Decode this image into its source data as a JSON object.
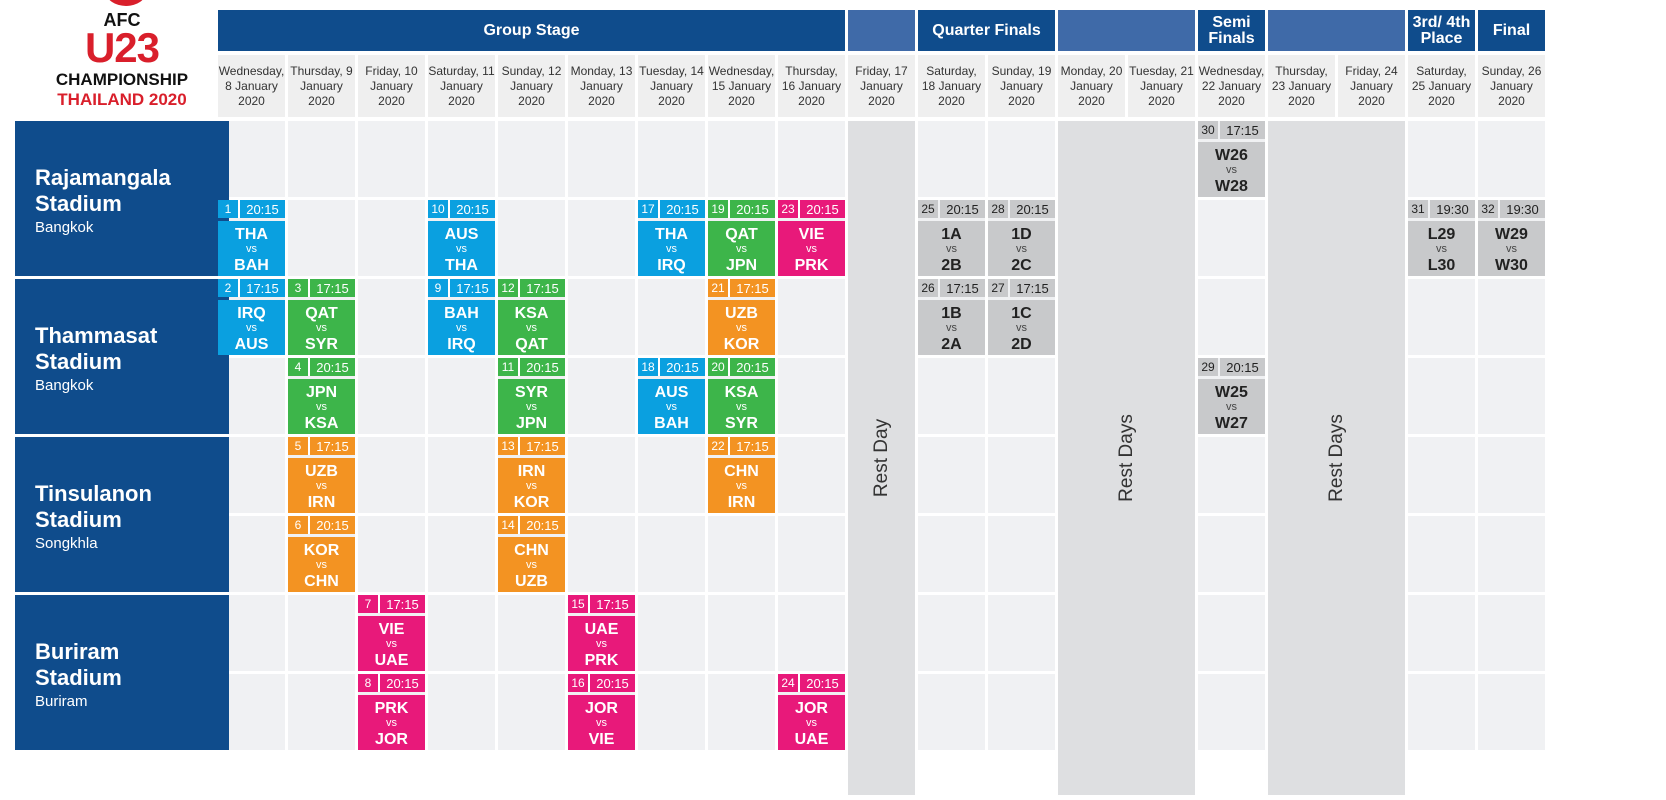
{
  "logo": {
    "line1": "AFC",
    "line2": "U23",
    "line3": "CHAMPIONSHIP",
    "line4": "THAILAND 2020"
  },
  "stage_headers": [
    {
      "label": "Group Stage",
      "c0": 0,
      "c1": 8
    },
    {
      "label": "",
      "c0": 9,
      "c1": 9
    },
    {
      "label": "Quarter Finals",
      "c0": 10,
      "c1": 11
    },
    {
      "label": "",
      "c0": 12,
      "c1": 13
    },
    {
      "label": "Semi Finals",
      "c0": 14,
      "c1": 14
    },
    {
      "label": "",
      "c0": 15,
      "c1": 16
    },
    {
      "label": "3rd/ 4th Place",
      "c0": 17,
      "c1": 17
    },
    {
      "label": "Final",
      "c0": 18,
      "c1": 18
    }
  ],
  "dates": [
    "Wednesday, 8 January 2020",
    "Thursday, 9 January 2020",
    "Friday, 10 January 2020",
    "Saturday, 11 January 2020",
    "Sunday, 12 January 2020",
    "Monday, 13 January 2020",
    "Tuesday, 14 January 2020",
    "Wednesday, 15 January 2020",
    "Thursday, 16 January 2020",
    "Friday, 17 January 2020",
    "Saturday, 18 January 2020",
    "Sunday, 19 January 2020",
    "Monday, 20 January 2020",
    "Tuesday, 21 January 2020",
    "Wednesday, 22 January 2020",
    "Thursday, 23 January 2020",
    "Friday, 24 January 2020",
    "Saturday, 25 January 2020",
    "Sunday, 26 January 2020"
  ],
  "venues": [
    {
      "name": "Rajamangala Stadium",
      "city": "Bangkok"
    },
    {
      "name": "Thammasat Stadium",
      "city": "Bangkok"
    },
    {
      "name": "Tinsulanon Stadium",
      "city": "Songkhla"
    },
    {
      "name": "Buriram Stadium",
      "city": "Buriram"
    }
  ],
  "rest_blocks": [
    {
      "label": "Rest Day",
      "c0": 9,
      "c1": 9
    },
    {
      "label": "Rest Days",
      "c0": 12,
      "c1": 13
    },
    {
      "label": "Rest Days",
      "c0": 15,
      "c1": 16
    }
  ],
  "colors": {
    "blue": "#0aa0e0",
    "green": "#3db54a",
    "orange": "#f39322",
    "pink": "#e8197a",
    "grey": "#c8c9cb"
  },
  "matches": [
    {
      "no": "1",
      "time": "20:15",
      "home": "THA",
      "away": "BAH",
      "col": 0,
      "row": 1,
      "color": "blue"
    },
    {
      "no": "10",
      "time": "20:15",
      "home": "AUS",
      "away": "THA",
      "col": 3,
      "row": 1,
      "color": "blue"
    },
    {
      "no": "17",
      "time": "20:15",
      "home": "THA",
      "away": "IRQ",
      "col": 6,
      "row": 1,
      "color": "blue"
    },
    {
      "no": "19",
      "time": "20:15",
      "home": "QAT",
      "away": "JPN",
      "col": 7,
      "row": 1,
      "color": "green"
    },
    {
      "no": "23",
      "time": "20:15",
      "home": "VIE",
      "away": "PRK",
      "col": 8,
      "row": 1,
      "color": "pink"
    },
    {
      "no": "25",
      "time": "20:15",
      "home": "1A",
      "away": "2B",
      "col": 10,
      "row": 1,
      "color": "grey"
    },
    {
      "no": "28",
      "time": "20:15",
      "home": "1D",
      "away": "2C",
      "col": 11,
      "row": 1,
      "color": "grey"
    },
    {
      "no": "30",
      "time": "17:15",
      "home": "W26",
      "away": "W28",
      "col": 14,
      "row": 0,
      "color": "grey"
    },
    {
      "no": "31",
      "time": "19:30",
      "home": "L29",
      "away": "L30",
      "col": 17,
      "row": 1,
      "color": "grey"
    },
    {
      "no": "32",
      "time": "19:30",
      "home": "W29",
      "away": "W30",
      "col": 18,
      "row": 1,
      "color": "grey"
    },
    {
      "no": "2",
      "time": "17:15",
      "home": "IRQ",
      "away": "AUS",
      "col": 0,
      "row": 2,
      "color": "blue"
    },
    {
      "no": "3",
      "time": "17:15",
      "home": "QAT",
      "away": "SYR",
      "col": 1,
      "row": 2,
      "color": "green"
    },
    {
      "no": "9",
      "time": "17:15",
      "home": "BAH",
      "away": "IRQ",
      "col": 3,
      "row": 2,
      "color": "blue"
    },
    {
      "no": "12",
      "time": "17:15",
      "home": "KSA",
      "away": "QAT",
      "col": 4,
      "row": 2,
      "color": "green"
    },
    {
      "no": "21",
      "time": "17:15",
      "home": "UZB",
      "away": "KOR",
      "col": 7,
      "row": 2,
      "color": "orange"
    },
    {
      "no": "26",
      "time": "17:15",
      "home": "1B",
      "away": "2A",
      "col": 10,
      "row": 2,
      "color": "grey"
    },
    {
      "no": "27",
      "time": "17:15",
      "home": "1C",
      "away": "2D",
      "col": 11,
      "row": 2,
      "color": "grey"
    },
    {
      "no": "4",
      "time": "20:15",
      "home": "JPN",
      "away": "KSA",
      "col": 1,
      "row": 3,
      "color": "green"
    },
    {
      "no": "11",
      "time": "20:15",
      "home": "SYR",
      "away": "JPN",
      "col": 4,
      "row": 3,
      "color": "green"
    },
    {
      "no": "18",
      "time": "20:15",
      "home": "AUS",
      "away": "BAH",
      "col": 6,
      "row": 3,
      "color": "blue"
    },
    {
      "no": "20",
      "time": "20:15",
      "home": "KSA",
      "away": "SYR",
      "col": 7,
      "row": 3,
      "color": "green"
    },
    {
      "no": "29",
      "time": "20:15",
      "home": "W25",
      "away": "W27",
      "col": 14,
      "row": 3,
      "color": "grey"
    },
    {
      "no": "5",
      "time": "17:15",
      "home": "UZB",
      "away": "IRN",
      "col": 1,
      "row": 4,
      "color": "orange"
    },
    {
      "no": "13",
      "time": "17:15",
      "home": "IRN",
      "away": "KOR",
      "col": 4,
      "row": 4,
      "color": "orange"
    },
    {
      "no": "22",
      "time": "17:15",
      "home": "CHN",
      "away": "IRN",
      "col": 7,
      "row": 4,
      "color": "orange"
    },
    {
      "no": "6",
      "time": "20:15",
      "home": "KOR",
      "away": "CHN",
      "col": 1,
      "row": 5,
      "color": "orange"
    },
    {
      "no": "14",
      "time": "20:15",
      "home": "CHN",
      "away": "UZB",
      "col": 4,
      "row": 5,
      "color": "orange"
    },
    {
      "no": "7",
      "time": "17:15",
      "home": "VIE",
      "away": "UAE",
      "col": 2,
      "row": 6,
      "color": "pink"
    },
    {
      "no": "15",
      "time": "17:15",
      "home": "UAE",
      "away": "PRK",
      "col": 5,
      "row": 6,
      "color": "pink"
    },
    {
      "no": "8",
      "time": "20:15",
      "home": "PRK",
      "away": "JOR",
      "col": 2,
      "row": 7,
      "color": "pink"
    },
    {
      "no": "16",
      "time": "20:15",
      "home": "JOR",
      "away": "VIE",
      "col": 5,
      "row": 7,
      "color": "pink"
    },
    {
      "no": "24",
      "time": "20:15",
      "home": "JOR",
      "away": "UAE",
      "col": 8,
      "row": 7,
      "color": "pink"
    }
  ]
}
